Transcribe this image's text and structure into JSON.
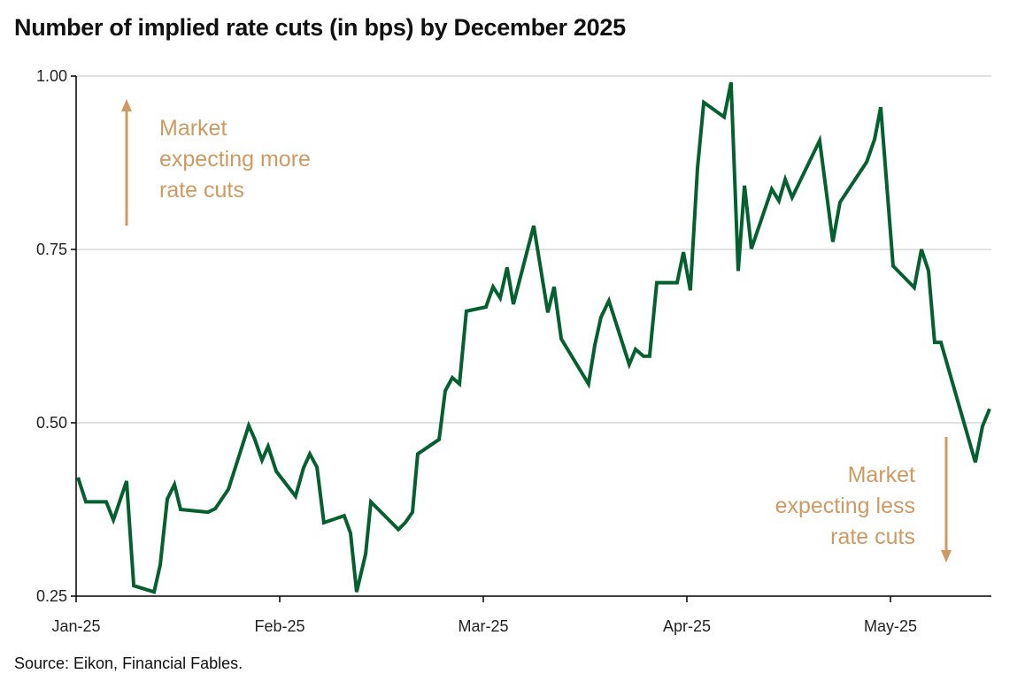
{
  "chart_data": {
    "type": "line",
    "title": "Number of implied rate cuts (in bps) by December 2025",
    "source": "Source: Eikon, Financial Fables.",
    "xlabel": "",
    "ylabel": "",
    "x_unit": "months since Jan-25 (0 = Jan-25)",
    "x_ticks": [
      "Jan-25",
      "Feb-25",
      "Mar-25",
      "Apr-25",
      "May-25"
    ],
    "y_ticks": [
      "0.25",
      "0.50",
      "0.75",
      "1.00"
    ],
    "ylim": [
      0.25,
      1.0
    ],
    "xlim": [
      0,
      4.49
    ],
    "grid": true,
    "colors": {
      "line": "#05602F",
      "annotation": "#CF9A62",
      "grid": "#D9D9D9"
    },
    "annotations": [
      {
        "lines": [
          "Market",
          "expecting more",
          "rate cuts"
        ],
        "arrow": "up"
      },
      {
        "lines": [
          "Market",
          "expecting less",
          "rate cuts"
        ],
        "arrow": "down"
      }
    ],
    "series": [
      {
        "name": "Implied rate cuts",
        "x": [
          0.009,
          0.048,
          0.148,
          0.183,
          0.248,
          0.283,
          0.383,
          0.413,
          0.448,
          0.483,
          0.513,
          0.648,
          0.683,
          0.748,
          0.848,
          0.878,
          0.913,
          0.943,
          0.983,
          1.078,
          1.117,
          1.148,
          1.183,
          1.217,
          1.317,
          1.348,
          1.378,
          1.422,
          1.448,
          1.583,
          1.617,
          1.652,
          1.678,
          1.783,
          1.813,
          1.848,
          1.883,
          1.917,
          2.013,
          2.048,
          2.083,
          2.117,
          2.148,
          2.248,
          2.317,
          2.348,
          2.383,
          2.517,
          2.548,
          2.578,
          2.617,
          2.717,
          2.748,
          2.787,
          2.817,
          2.852,
          2.952,
          2.983,
          3.017,
          3.052,
          3.083,
          3.183,
          3.217,
          3.252,
          3.283,
          3.317,
          3.417,
          3.452,
          3.483,
          3.517,
          3.652,
          3.717,
          3.752,
          3.883,
          3.922,
          3.952,
          4.013,
          4.117,
          4.152,
          4.187,
          4.217,
          4.248,
          4.417,
          4.452,
          4.487
        ],
        "values": [
          0.421,
          0.386,
          0.386,
          0.36,
          0.416,
          0.265,
          0.256,
          0.295,
          0.39,
          0.411,
          0.375,
          0.371,
          0.376,
          0.404,
          0.496,
          0.476,
          0.446,
          0.466,
          0.43,
          0.394,
          0.435,
          0.455,
          0.436,
          0.356,
          0.366,
          0.341,
          0.256,
          0.311,
          0.386,
          0.346,
          0.356,
          0.371,
          0.455,
          0.476,
          0.546,
          0.565,
          0.556,
          0.661,
          0.667,
          0.696,
          0.68,
          0.724,
          0.671,
          0.784,
          0.659,
          0.696,
          0.621,
          0.556,
          0.612,
          0.652,
          0.676,
          0.584,
          0.606,
          0.596,
          0.596,
          0.702,
          0.702,
          0.746,
          0.691,
          0.867,
          0.962,
          0.941,
          0.991,
          0.719,
          0.842,
          0.751,
          0.837,
          0.82,
          0.851,
          0.825,
          0.907,
          0.761,
          0.818,
          0.876,
          0.909,
          0.955,
          0.726,
          0.695,
          0.75,
          0.719,
          0.616,
          0.616,
          0.443,
          0.495,
          0.52
        ]
      }
    ]
  }
}
